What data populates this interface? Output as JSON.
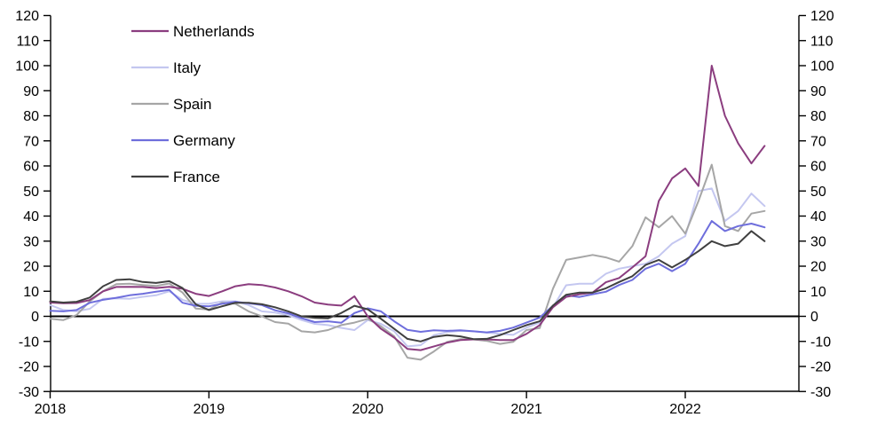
{
  "chart_data": {
    "type": "line",
    "title": "",
    "xlabel": "",
    "ylabel": "",
    "ylim": [
      -30,
      120
    ],
    "y_tick_step": 10,
    "y_ticks": [
      120,
      110,
      100,
      90,
      80,
      70,
      60,
      50,
      40,
      30,
      20,
      10,
      0,
      -10,
      -20,
      -30
    ],
    "x_tick_labels": [
      "2018",
      "2019",
      "2020",
      "2021",
      "2022"
    ],
    "x_tick_month_index": [
      0,
      12,
      24,
      36,
      48
    ],
    "grid": false,
    "zero_line": true,
    "dual_axis": true,
    "legend_position": "top-left",
    "months": [
      "2018-01",
      "2018-02",
      "2018-03",
      "2018-04",
      "2018-05",
      "2018-06",
      "2018-07",
      "2018-08",
      "2018-09",
      "2018-10",
      "2018-11",
      "2018-12",
      "2019-01",
      "2019-02",
      "2019-03",
      "2019-04",
      "2019-05",
      "2019-06",
      "2019-07",
      "2019-08",
      "2019-09",
      "2019-10",
      "2019-11",
      "2019-12",
      "2020-01",
      "2020-02",
      "2020-03",
      "2020-04",
      "2020-05",
      "2020-06",
      "2020-07",
      "2020-08",
      "2020-09",
      "2020-10",
      "2020-11",
      "2020-12",
      "2021-01",
      "2021-02",
      "2021-03",
      "2021-04",
      "2021-05",
      "2021-06",
      "2021-07",
      "2021-08",
      "2021-09",
      "2021-10",
      "2021-11",
      "2021-12",
      "2022-01",
      "2022-02",
      "2022-03",
      "2022-04",
      "2022-05",
      "2022-06",
      "2022-07"
    ],
    "series": [
      {
        "name": "Netherlands",
        "color": "#8B3D7F",
        "values": [
          5.5,
          5.2,
          5.3,
          6.5,
          10,
          11.7,
          11.8,
          11.7,
          11.3,
          11.8,
          11,
          9,
          8.1,
          10,
          12,
          12.8,
          12.5,
          11.5,
          10,
          8,
          5.5,
          4.7,
          4.3,
          8,
          0,
          -5,
          -8.5,
          -13,
          -13.5,
          -12,
          -10.5,
          -9.5,
          -9.2,
          -9.2,
          -9.5,
          -9.5,
          -7,
          -3.5,
          3.6,
          7.7,
          8.8,
          9.5,
          13.6,
          15.3,
          19.5,
          24,
          46,
          55,
          59,
          52,
          100,
          80,
          69,
          61,
          68
        ]
      },
      {
        "name": "Italy",
        "color": "#C4C7F0",
        "values": [
          4.5,
          2.5,
          2,
          3,
          7,
          7.2,
          7,
          7.8,
          8.4,
          10,
          6.6,
          5,
          5,
          6,
          6,
          4.5,
          2,
          1.5,
          0.5,
          -1.5,
          -3,
          -3.5,
          -4.6,
          -5.5,
          -1.5,
          -3,
          -6,
          -12,
          -11.5,
          -7.5,
          -6.3,
          -5.8,
          -6,
          -6.5,
          -7,
          -7.4,
          -4.5,
          -2.5,
          3.6,
          12.4,
          13,
          13,
          17,
          19,
          20,
          21,
          24,
          29,
          32,
          50,
          51,
          38,
          42,
          49,
          44
        ]
      },
      {
        "name": "Spain",
        "color": "#A6A6A6",
        "values": [
          -1,
          -1.5,
          0.5,
          6,
          10,
          12.8,
          13,
          12.5,
          12.1,
          13.1,
          9.5,
          3.1,
          2.7,
          5.4,
          5,
          2,
          0,
          -2.3,
          -2.9,
          -6,
          -6.4,
          -5.5,
          -3.5,
          -2.5,
          -1,
          -4,
          -8,
          -16.5,
          -17.3,
          -14,
          -10.2,
          -9.1,
          -9.2,
          -9.8,
          -11,
          -10.2,
          -5.5,
          -4.7,
          11,
          22.5,
          23.5,
          24.5,
          23.5,
          21.8,
          28,
          39.5,
          35.5,
          40,
          33,
          46,
          60.5,
          36,
          34,
          41,
          42
        ]
      },
      {
        "name": "Germany",
        "color": "#6E6EDC",
        "values": [
          2.2,
          2,
          2.5,
          5.4,
          6.6,
          7.4,
          8.4,
          9,
          9.8,
          10.5,
          5.4,
          4.2,
          4,
          5,
          5.8,
          5.2,
          4.5,
          2.4,
          1.2,
          -0.7,
          -2.3,
          -2,
          -2.6,
          1.3,
          3.2,
          2,
          -2,
          -5.4,
          -6.2,
          -5.6,
          -5.8,
          -5.6,
          -6,
          -6.4,
          -5.8,
          -4.5,
          -2.5,
          -0.5,
          4.2,
          8.4,
          7.7,
          8.8,
          9.8,
          12.5,
          14.5,
          19,
          21,
          18,
          21,
          29,
          38,
          34,
          36,
          37,
          35.5
        ]
      },
      {
        "name": "France",
        "color": "#404040",
        "values": [
          6,
          5.5,
          5.8,
          7.5,
          12,
          14.5,
          14.8,
          13.7,
          13.3,
          14,
          11.3,
          4.8,
          2.5,
          4,
          5.4,
          5.4,
          4.8,
          3.6,
          2,
          0,
          -0.6,
          -0.8,
          1.3,
          4.2,
          2.8,
          -1,
          -5,
          -9,
          -10,
          -8.2,
          -7.5,
          -8,
          -9.1,
          -9,
          -7.5,
          -5.5,
          -3.5,
          -2,
          4.3,
          8.6,
          9.5,
          9.5,
          11.2,
          13.7,
          16,
          20.5,
          22.5,
          19.5,
          22.5,
          26,
          30,
          28,
          29,
          34,
          30
        ]
      }
    ]
  },
  "colors": {
    "axis": "#000000",
    "background": "#ffffff",
    "text": "#000000"
  }
}
